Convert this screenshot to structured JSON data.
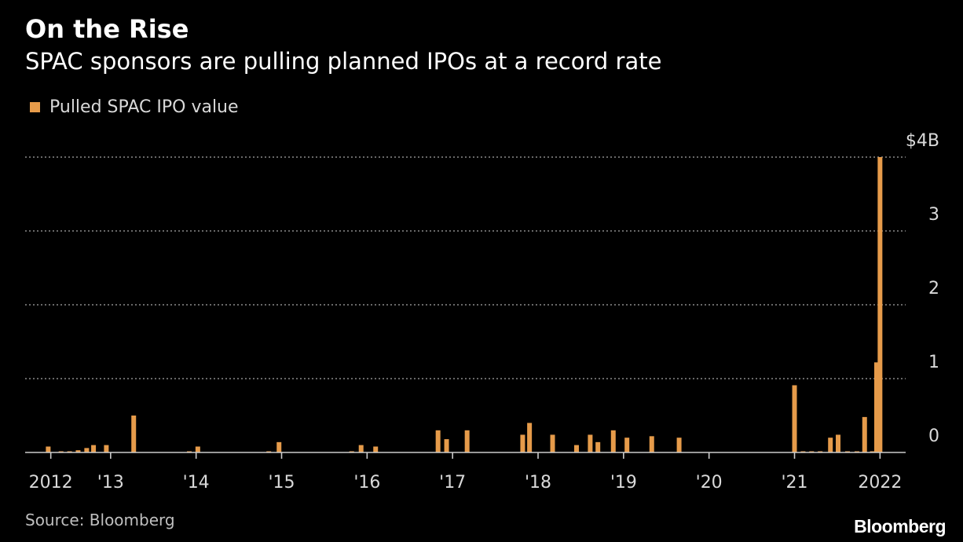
{
  "header": {
    "title": "On the Rise",
    "subtitle": "SPAC sponsors are pulling planned IPOs at a record rate"
  },
  "legend": {
    "items": [
      {
        "label": "Pulled SPAC IPO value",
        "color": "#e69b4a"
      }
    ]
  },
  "footer": {
    "source": "Source: Bloomberg",
    "brand": "Bloomberg"
  },
  "colors": {
    "background": "#000000",
    "bar": "#e69b4a",
    "grid": "#8a8a8a",
    "axis": "#cccccc",
    "text": "#ffffff"
  },
  "chart_data": {
    "type": "bar",
    "ylabel": "",
    "xlabel": "",
    "unit": "$B",
    "ylim": [
      0,
      4
    ],
    "yticks": [
      {
        "value": 0,
        "label": "0"
      },
      {
        "value": 1,
        "label": "1"
      },
      {
        "value": 2,
        "label": "2"
      },
      {
        "value": 3,
        "label": "3"
      },
      {
        "value": 4,
        "label": "$4B"
      }
    ],
    "xlim": [
      2012.0,
      2022.3
    ],
    "xticks": [
      {
        "value": 2012.3,
        "label": "2012"
      },
      {
        "value": 2013.0,
        "label": "'13"
      },
      {
        "value": 2014.0,
        "label": "'14"
      },
      {
        "value": 2015.0,
        "label": "'15"
      },
      {
        "value": 2016.0,
        "label": "'16"
      },
      {
        "value": 2017.0,
        "label": "'17"
      },
      {
        "value": 2018.0,
        "label": "'18"
      },
      {
        "value": 2019.0,
        "label": "'19"
      },
      {
        "value": 2020.0,
        "label": "'20"
      },
      {
        "value": 2021.0,
        "label": "'21"
      },
      {
        "value": 2022.0,
        "label": "2022"
      }
    ],
    "grid": true,
    "legend_position": "top-left",
    "series": [
      {
        "name": "Pulled SPAC IPO value",
        "color": "#e69b4a",
        "points": [
          {
            "x": 2012.27,
            "y": 0.08
          },
          {
            "x": 2012.42,
            "y": 0.01
          },
          {
            "x": 2012.52,
            "y": 0.01
          },
          {
            "x": 2012.62,
            "y": 0.03
          },
          {
            "x": 2012.72,
            "y": 0.06
          },
          {
            "x": 2012.8,
            "y": 0.1
          },
          {
            "x": 2012.95,
            "y": 0.1
          },
          {
            "x": 2013.27,
            "y": 0.5
          },
          {
            "x": 2013.92,
            "y": 0.01
          },
          {
            "x": 2014.02,
            "y": 0.08
          },
          {
            "x": 2014.85,
            "y": 0.01
          },
          {
            "x": 2014.97,
            "y": 0.14
          },
          {
            "x": 2015.82,
            "y": 0.01
          },
          {
            "x": 2015.93,
            "y": 0.1
          },
          {
            "x": 2016.1,
            "y": 0.08
          },
          {
            "x": 2016.83,
            "y": 0.3
          },
          {
            "x": 2016.93,
            "y": 0.18
          },
          {
            "x": 2017.17,
            "y": 0.3
          },
          {
            "x": 2017.82,
            "y": 0.24
          },
          {
            "x": 2017.9,
            "y": 0.4
          },
          {
            "x": 2018.17,
            "y": 0.24
          },
          {
            "x": 2018.45,
            "y": 0.1
          },
          {
            "x": 2018.61,
            "y": 0.24
          },
          {
            "x": 2018.7,
            "y": 0.14
          },
          {
            "x": 2018.88,
            "y": 0.3
          },
          {
            "x": 2019.04,
            "y": 0.2
          },
          {
            "x": 2019.33,
            "y": 0.22
          },
          {
            "x": 2019.65,
            "y": 0.2
          },
          {
            "x": 2021.0,
            "y": 0.91
          },
          {
            "x": 2021.1,
            "y": 0.01
          },
          {
            "x": 2021.2,
            "y": 0.01
          },
          {
            "x": 2021.3,
            "y": 0.01
          },
          {
            "x": 2021.42,
            "y": 0.2
          },
          {
            "x": 2021.51,
            "y": 0.24
          },
          {
            "x": 2021.62,
            "y": 0.01
          },
          {
            "x": 2021.73,
            "y": 0.01
          },
          {
            "x": 2021.82,
            "y": 0.48
          },
          {
            "x": 2021.91,
            "y": 0.01
          },
          {
            "x": 2021.96,
            "y": 1.22
          },
          {
            "x": 2022.0,
            "y": 4.0
          }
        ]
      }
    ]
  }
}
